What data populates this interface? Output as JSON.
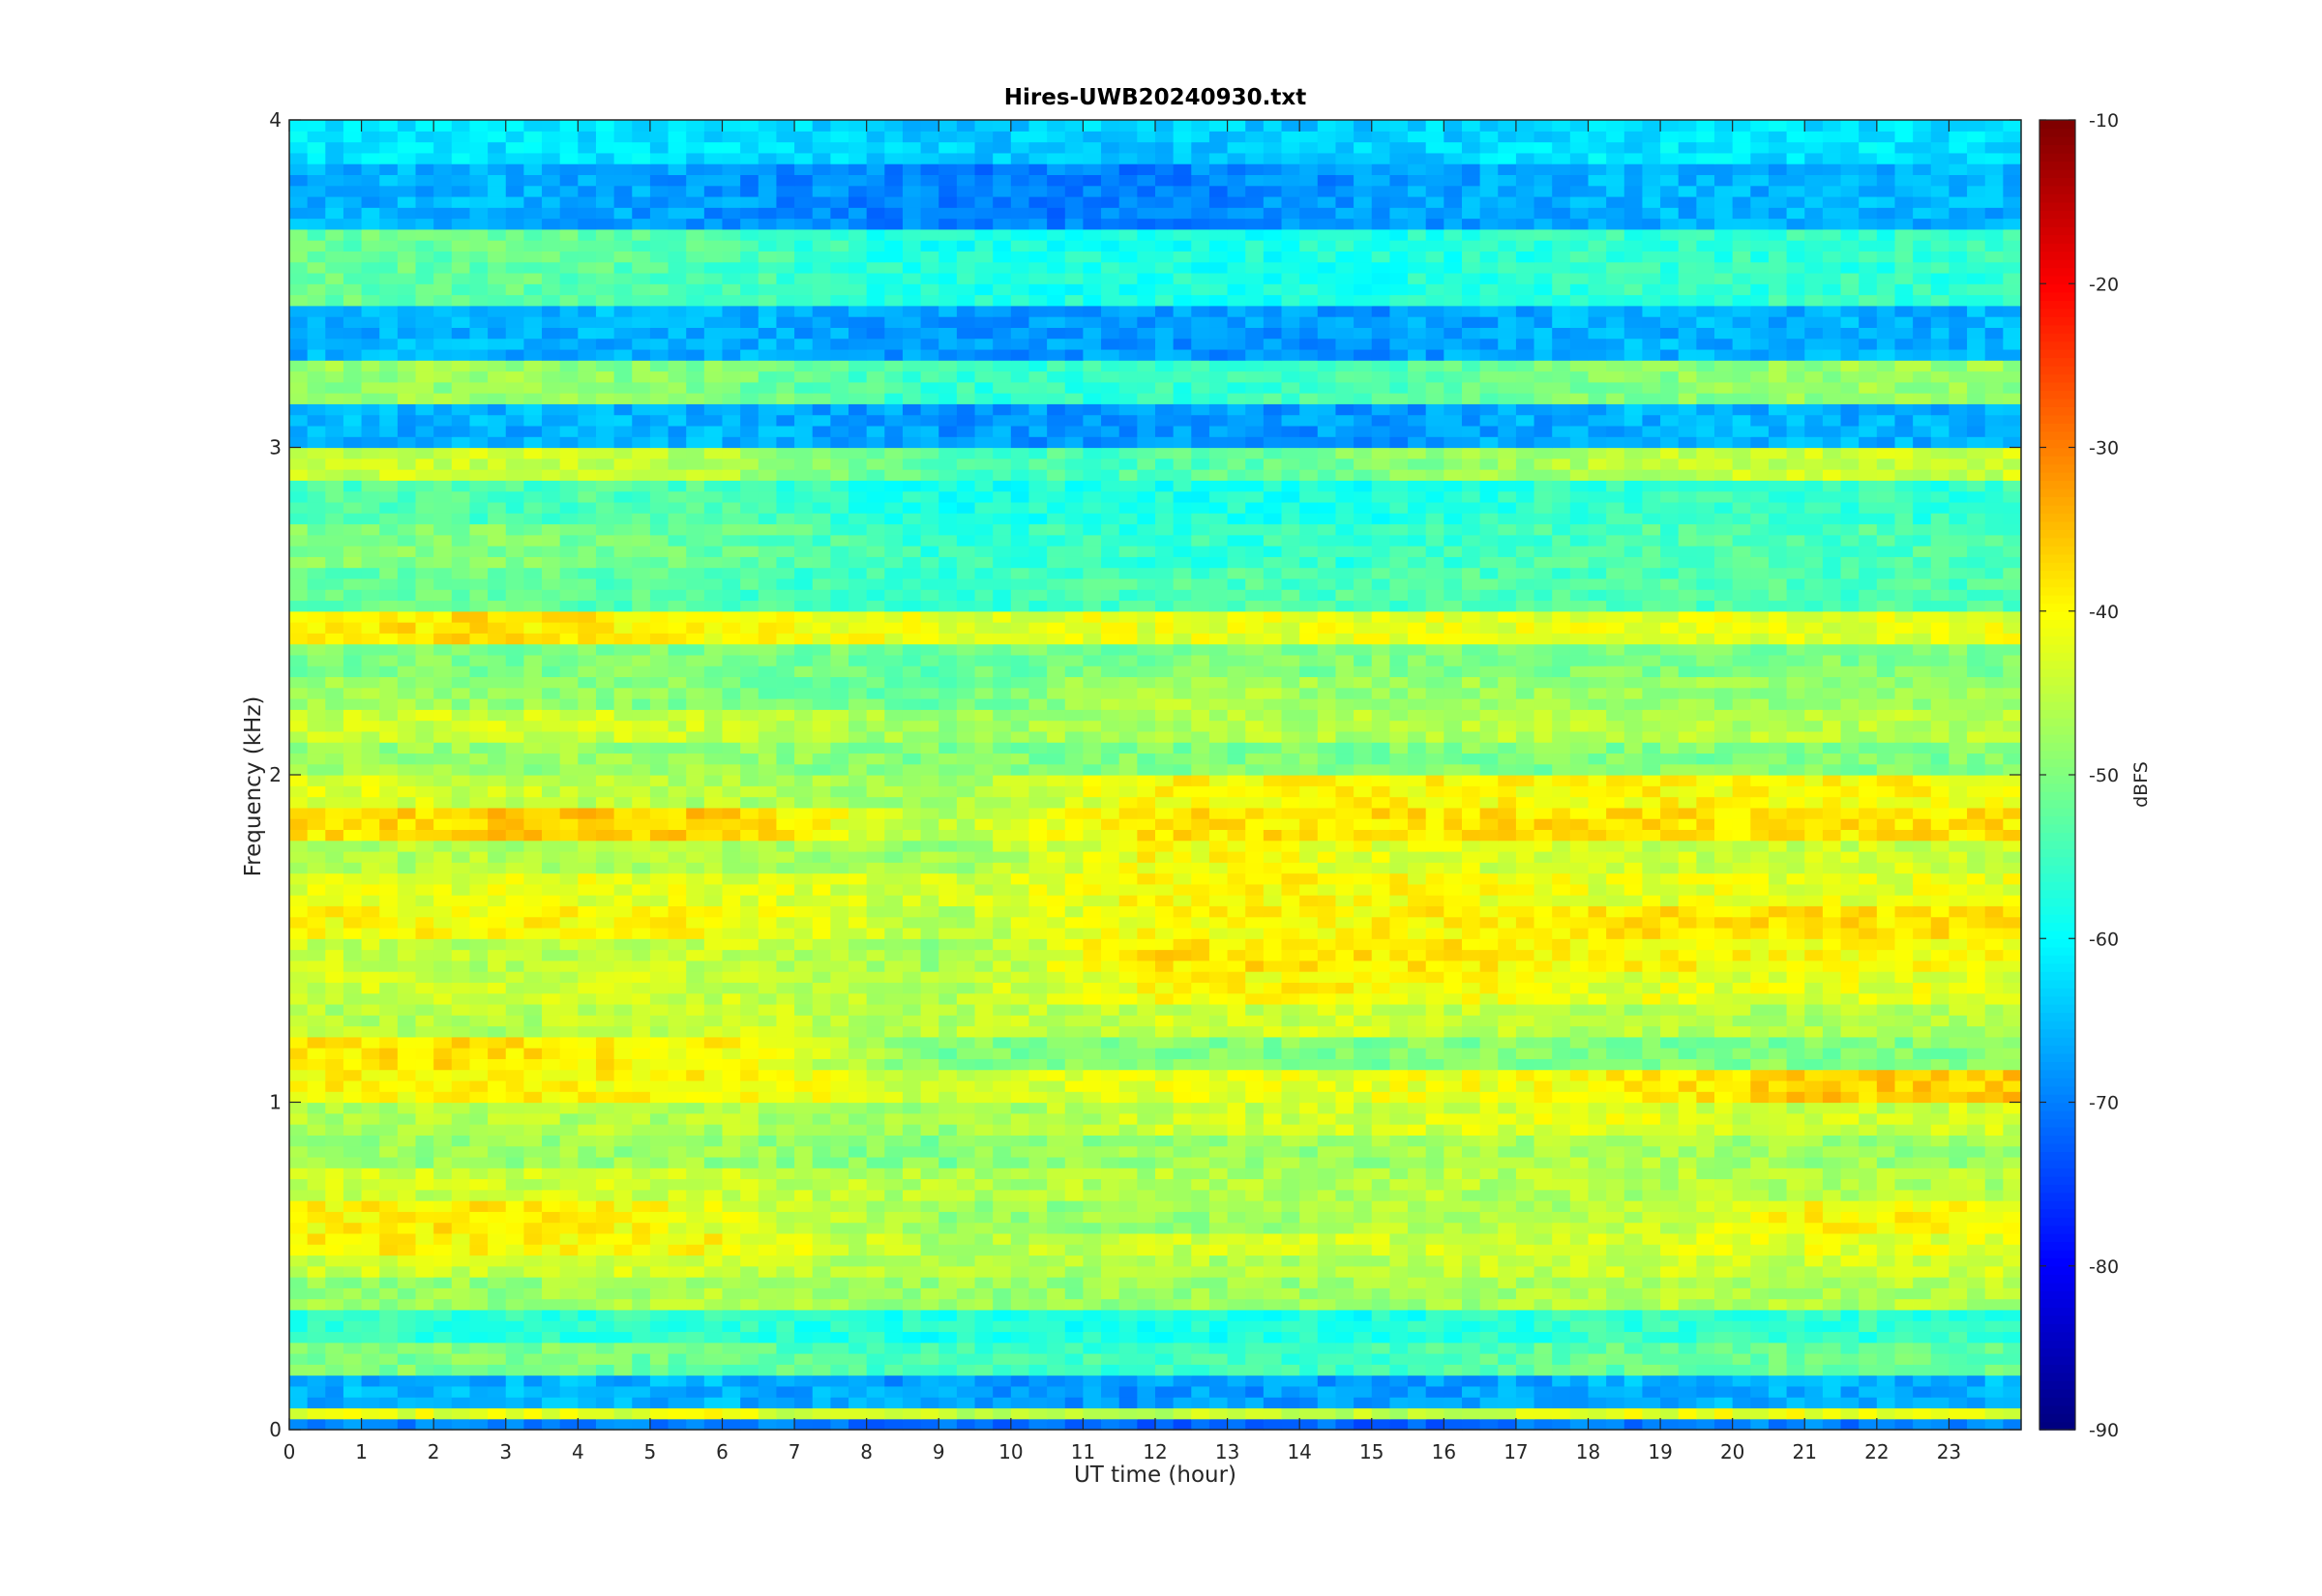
{
  "chart_data": {
    "type": "heatmap",
    "title": "Hires-UWB20240930.txt",
    "xlabel": "UT time (hour)",
    "ylabel": "Frequency (kHz)",
    "colorbar_label": "dBFS",
    "xlim": [
      0,
      24
    ],
    "ylim": [
      0,
      4
    ],
    "clim": [
      -90,
      -10
    ],
    "colormap": "jet",
    "x_ticks": [
      "0",
      "1",
      "2",
      "3",
      "4",
      "5",
      "6",
      "7",
      "8",
      "9",
      "10",
      "11",
      "12",
      "13",
      "14",
      "15",
      "16",
      "17",
      "18",
      "19",
      "20",
      "21",
      "22",
      "23"
    ],
    "y_ticks": [
      "0",
      "1",
      "2",
      "3",
      "4"
    ],
    "colorbar_ticks": [
      "-10",
      "-20",
      "-30",
      "-40",
      "-50",
      "-60",
      "-70",
      "-80",
      "-90"
    ],
    "rows_freq_khz": [
      0.0,
      0.05,
      0.1,
      0.2,
      0.3,
      0.4,
      0.5,
      0.55,
      0.65,
      0.75,
      0.85,
      0.95,
      1.05,
      1.15,
      1.25,
      1.35,
      1.45,
      1.55,
      1.65,
      1.75,
      1.85,
      1.95,
      2.05,
      2.15,
      2.25,
      2.35,
      2.45,
      2.55,
      2.7,
      2.85,
      2.95,
      3.05,
      3.2,
      3.35,
      3.55,
      3.75,
      3.95
    ],
    "cols_hour": [
      0,
      3,
      6,
      9,
      12,
      15,
      18,
      21
    ],
    "levels_dbfs": [
      [
        -70,
        -70,
        -70,
        -72,
        -72,
        -72,
        -70,
        -70
      ],
      [
        -42,
        -42,
        -42,
        -45,
        -45,
        -45,
        -42,
        -42
      ],
      [
        -66,
        -66,
        -66,
        -68,
        -68,
        -68,
        -66,
        -66
      ],
      [
        -50,
        -50,
        -52,
        -55,
        -55,
        -55,
        -52,
        -52
      ],
      [
        -56,
        -56,
        -56,
        -58,
        -58,
        -58,
        -56,
        -56
      ],
      [
        -48,
        -48,
        -46,
        -48,
        -48,
        -48,
        -46,
        -46
      ],
      [
        -44,
        -44,
        -44,
        -46,
        -46,
        -46,
        -44,
        -44
      ],
      [
        -38,
        -40,
        -40,
        -46,
        -44,
        -44,
        -44,
        -42
      ],
      [
        -40,
        -38,
        -42,
        -48,
        -48,
        -46,
        -46,
        -40
      ],
      [
        -44,
        -44,
        -44,
        -46,
        -46,
        -46,
        -46,
        -46
      ],
      [
        -48,
        -48,
        -48,
        -50,
        -48,
        -48,
        -46,
        -48
      ],
      [
        -46,
        -46,
        -46,
        -48,
        -44,
        -44,
        -42,
        -44
      ],
      [
        -40,
        -40,
        -40,
        -44,
        -42,
        -42,
        -40,
        -36
      ],
      [
        -38,
        -38,
        -40,
        -50,
        -50,
        -50,
        -50,
        -50
      ],
      [
        -46,
        -46,
        -44,
        -46,
        -44,
        -44,
        -46,
        -46
      ],
      [
        -44,
        -44,
        -44,
        -46,
        -40,
        -40,
        -42,
        -42
      ],
      [
        -44,
        -46,
        -44,
        -48,
        -38,
        -38,
        -40,
        -40
      ],
      [
        -40,
        -40,
        -40,
        -46,
        -40,
        -40,
        -38,
        -38
      ],
      [
        -42,
        -42,
        -42,
        -44,
        -40,
        -40,
        -42,
        -42
      ],
      [
        -46,
        -46,
        -46,
        -48,
        -40,
        -42,
        -44,
        -44
      ],
      [
        -38,
        -36,
        -36,
        -46,
        -38,
        -38,
        -38,
        -38
      ],
      [
        -42,
        -44,
        -46,
        -48,
        -40,
        -40,
        -40,
        -40
      ],
      [
        -48,
        -48,
        -48,
        -50,
        -50,
        -50,
        -50,
        -50
      ],
      [
        -44,
        -44,
        -44,
        -48,
        -46,
        -46,
        -46,
        -46
      ],
      [
        -48,
        -48,
        -50,
        -52,
        -46,
        -48,
        -48,
        -48
      ],
      [
        -50,
        -50,
        -50,
        -52,
        -50,
        -50,
        -50,
        -50
      ],
      [
        -38,
        -38,
        -40,
        -42,
        -42,
        -42,
        -42,
        -42
      ],
      [
        -52,
        -52,
        -54,
        -56,
        -54,
        -54,
        -54,
        -54
      ],
      [
        -50,
        -50,
        -52,
        -56,
        -56,
        -56,
        -54,
        -54
      ],
      [
        -54,
        -54,
        -54,
        -58,
        -58,
        -58,
        -56,
        -56
      ],
      [
        -44,
        -44,
        -46,
        -54,
        -54,
        -50,
        -46,
        -44
      ],
      [
        -66,
        -66,
        -66,
        -68,
        -68,
        -68,
        -66,
        -66
      ],
      [
        -48,
        -48,
        -50,
        -56,
        -56,
        -54,
        -50,
        -48
      ],
      [
        -66,
        -66,
        -66,
        -68,
        -68,
        -68,
        -66,
        -66
      ],
      [
        -52,
        -52,
        -54,
        -58,
        -58,
        -58,
        -56,
        -56
      ],
      [
        -66,
        -66,
        -68,
        -70,
        -70,
        -68,
        -66,
        -66
      ],
      [
        -62,
        -62,
        -62,
        -64,
        -64,
        -64,
        -62,
        -62
      ]
    ]
  }
}
